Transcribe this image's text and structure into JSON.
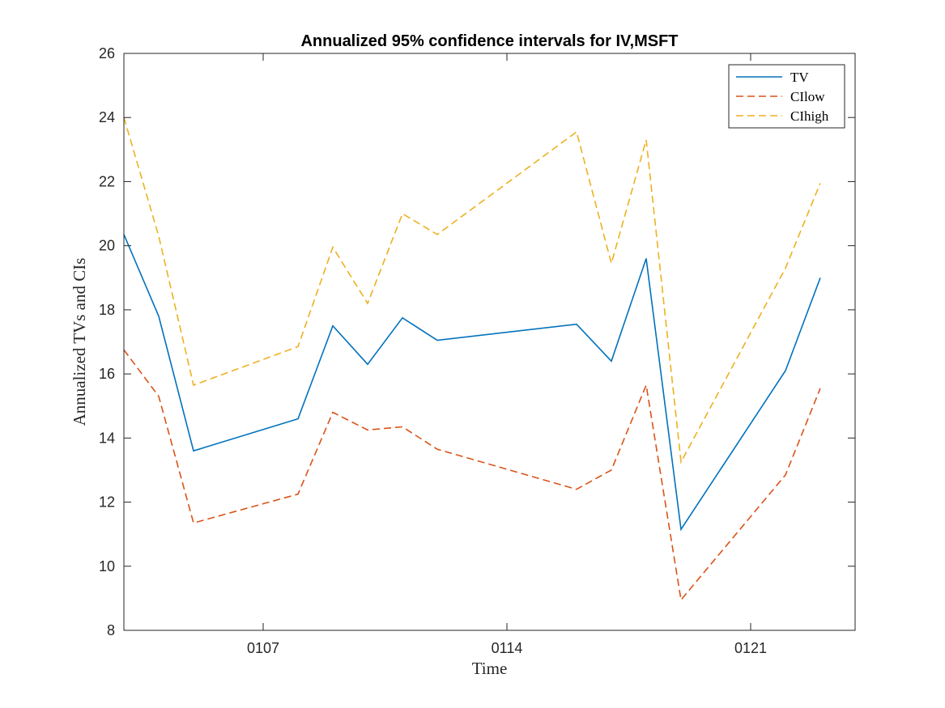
{
  "chart_data": {
    "type": "line",
    "title": "Annualized 95% confidence intervals for IV,MSFT",
    "xlabel": "Time",
    "ylabel": "Annualized TVs and CIs",
    "x_tick_labels": [
      "0107",
      "0114",
      "0121"
    ],
    "x_tick_values": [
      "2000-01-07",
      "2000-01-14",
      "2000-01-21"
    ],
    "xlim": [
      "2000-01-03",
      "2000-01-24"
    ],
    "ylim": [
      8,
      26
    ],
    "y_ticks": [
      8,
      10,
      12,
      14,
      16,
      18,
      20,
      22,
      24,
      26
    ],
    "x": [
      "2000-01-03",
      "2000-01-04",
      "2000-01-05",
      "2000-01-08",
      "2000-01-09",
      "2000-01-10",
      "2000-01-11",
      "2000-01-12",
      "2000-01-16",
      "2000-01-17",
      "2000-01-18",
      "2000-01-19",
      "2000-01-22",
      "2000-01-23"
    ],
    "series": [
      {
        "name": "TV",
        "color": "#0072BD",
        "style": "solid",
        "values": [
          20.35,
          17.8,
          13.6,
          14.6,
          17.5,
          16.3,
          17.75,
          17.05,
          17.55,
          16.4,
          19.6,
          11.15,
          16.1,
          19.0
        ]
      },
      {
        "name": "CIlow",
        "color": "#D95319",
        "style": "dashed",
        "values": [
          16.75,
          15.3,
          11.35,
          12.25,
          14.8,
          14.25,
          14.35,
          13.65,
          12.4,
          13.0,
          15.65,
          8.95,
          12.85,
          15.55
        ]
      },
      {
        "name": "CIhigh",
        "color": "#EDB120",
        "style": "dashed",
        "values": [
          24.0,
          20.3,
          15.65,
          16.85,
          19.95,
          18.2,
          21.0,
          20.35,
          23.55,
          19.45,
          23.3,
          13.25,
          19.3,
          21.95
        ]
      }
    ],
    "legend_position": "top-right",
    "grid": false
  }
}
